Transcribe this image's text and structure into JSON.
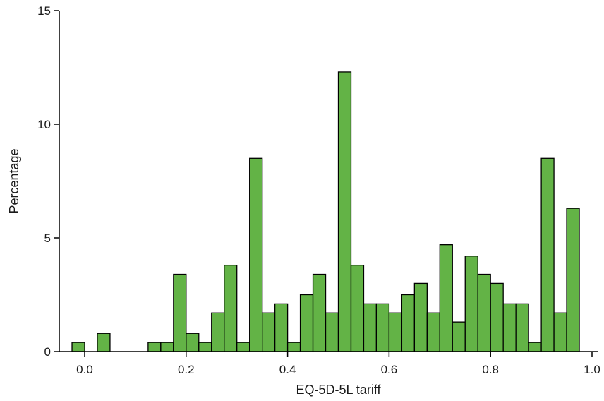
{
  "chart_data": {
    "type": "bar",
    "title": "",
    "xlabel": "EQ-5D-5L tariff",
    "ylabel": "Percentage",
    "xlim": [
      -0.05,
      1.0
    ],
    "ylim": [
      0,
      15
    ],
    "x_ticks": [
      0.0,
      0.2,
      0.4,
      0.6,
      0.8,
      1.0
    ],
    "x_tick_labels": [
      "0.0",
      "0.2",
      "0.4",
      "0.6",
      "0.8",
      "1.0"
    ],
    "y_ticks": [
      0,
      5,
      10,
      15
    ],
    "y_tick_labels": [
      "0",
      "5",
      "10",
      "15"
    ],
    "bar_color": "#63b346",
    "bin_width": 0.025,
    "bin_starts": [
      -0.025,
      0.0,
      0.025,
      0.05,
      0.075,
      0.1,
      0.125,
      0.15,
      0.175,
      0.2,
      0.225,
      0.25,
      0.275,
      0.3,
      0.325,
      0.35,
      0.375,
      0.4,
      0.425,
      0.45,
      0.475,
      0.5,
      0.525,
      0.55,
      0.575,
      0.6,
      0.625,
      0.65,
      0.675,
      0.7,
      0.725,
      0.75,
      0.775,
      0.8,
      0.825,
      0.85,
      0.875,
      0.9,
      0.925,
      0.95,
      0.975
    ],
    "values": [
      0.4,
      0,
      0.8,
      0,
      0,
      0,
      0.4,
      0.4,
      3.4,
      0.8,
      0.4,
      1.7,
      3.8,
      0.4,
      8.5,
      1.7,
      2.1,
      0.4,
      2.5,
      3.4,
      1.7,
      12.3,
      3.8,
      2.1,
      2.1,
      1.7,
      2.5,
      3.0,
      1.7,
      4.7,
      1.3,
      4.2,
      3.4,
      3.0,
      2.1,
      2.1,
      0.4,
      8.5,
      1.7,
      6.3,
      0
    ],
    "grid": false,
    "legend": "none"
  }
}
